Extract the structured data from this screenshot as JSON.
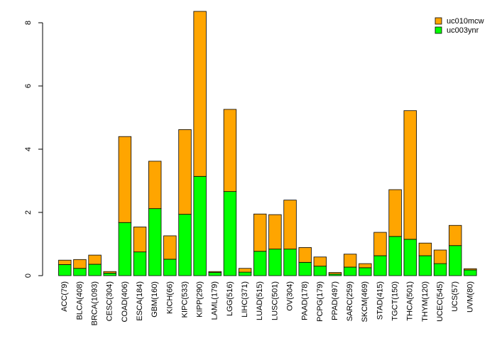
{
  "chart_data": {
    "type": "bar",
    "stacked": true,
    "categories": [
      "ACC(79)",
      "BLCA(408)",
      "BRCA(1093)",
      "CESC(304)",
      "COAD(406)",
      "ESCA(184)",
      "GBM(160)",
      "KICH(66)",
      "KIPC(533)",
      "KIPP(290)",
      "LAML(179)",
      "LGG(516)",
      "LIHC(371)",
      "LUAD(515)",
      "LUSC(501)",
      "OV(304)",
      "PAAD(178)",
      "PCPG(179)",
      "PPAD(497)",
      "SARC(259)",
      "SKCM(469)",
      "STAD(415)",
      "TGCT(150)",
      "THCA(501)",
      "THYM(120)",
      "UCEC(545)",
      "UCS(57)",
      "UVM(80)"
    ],
    "series": [
      {
        "name": "uc003ynr",
        "color": "#00ff00",
        "values": [
          0.35,
          0.23,
          0.36,
          0.08,
          1.68,
          0.75,
          2.12,
          0.52,
          1.94,
          3.14,
          0.1,
          2.66,
          0.11,
          0.77,
          0.84,
          0.84,
          0.42,
          0.3,
          0.05,
          0.27,
          0.25,
          0.63,
          1.24,
          1.15,
          0.63,
          0.38,
          0.95,
          0.18
        ],
        "totals": [
          0.49,
          0.51,
          0.65,
          0.13,
          4.4,
          1.54,
          3.62,
          1.26,
          4.62,
          8.36,
          0.13,
          5.26,
          0.23,
          1.95,
          1.93,
          2.39,
          0.89,
          0.59,
          0.1,
          0.68,
          0.38,
          1.37,
          2.72,
          5.22,
          1.03,
          0.81,
          1.59,
          0.22
        ]
      },
      {
        "name": "uc010mcw",
        "color": "#ffa500",
        "values": [
          0.14,
          0.28,
          0.29,
          0.05,
          2.72,
          0.79,
          1.5,
          0.74,
          2.68,
          5.22,
          0.03,
          2.6,
          0.12,
          1.18,
          1.09,
          1.55,
          0.47,
          0.29,
          0.05,
          0.41,
          0.13,
          0.74,
          1.48,
          4.07,
          0.4,
          0.43,
          0.64,
          0.04
        ]
      }
    ],
    "yticks": [
      0,
      2,
      4,
      6,
      8
    ],
    "ylim": [
      0,
      8.36
    ],
    "title": "",
    "xlabel": "",
    "ylabel": "",
    "grid": false,
    "legend": {
      "placement": "top-right",
      "entries": [
        {
          "label": "uc010mcw",
          "color": "#ffa500"
        },
        {
          "label": "uc003ynr",
          "color": "#00ff00"
        }
      ]
    }
  }
}
